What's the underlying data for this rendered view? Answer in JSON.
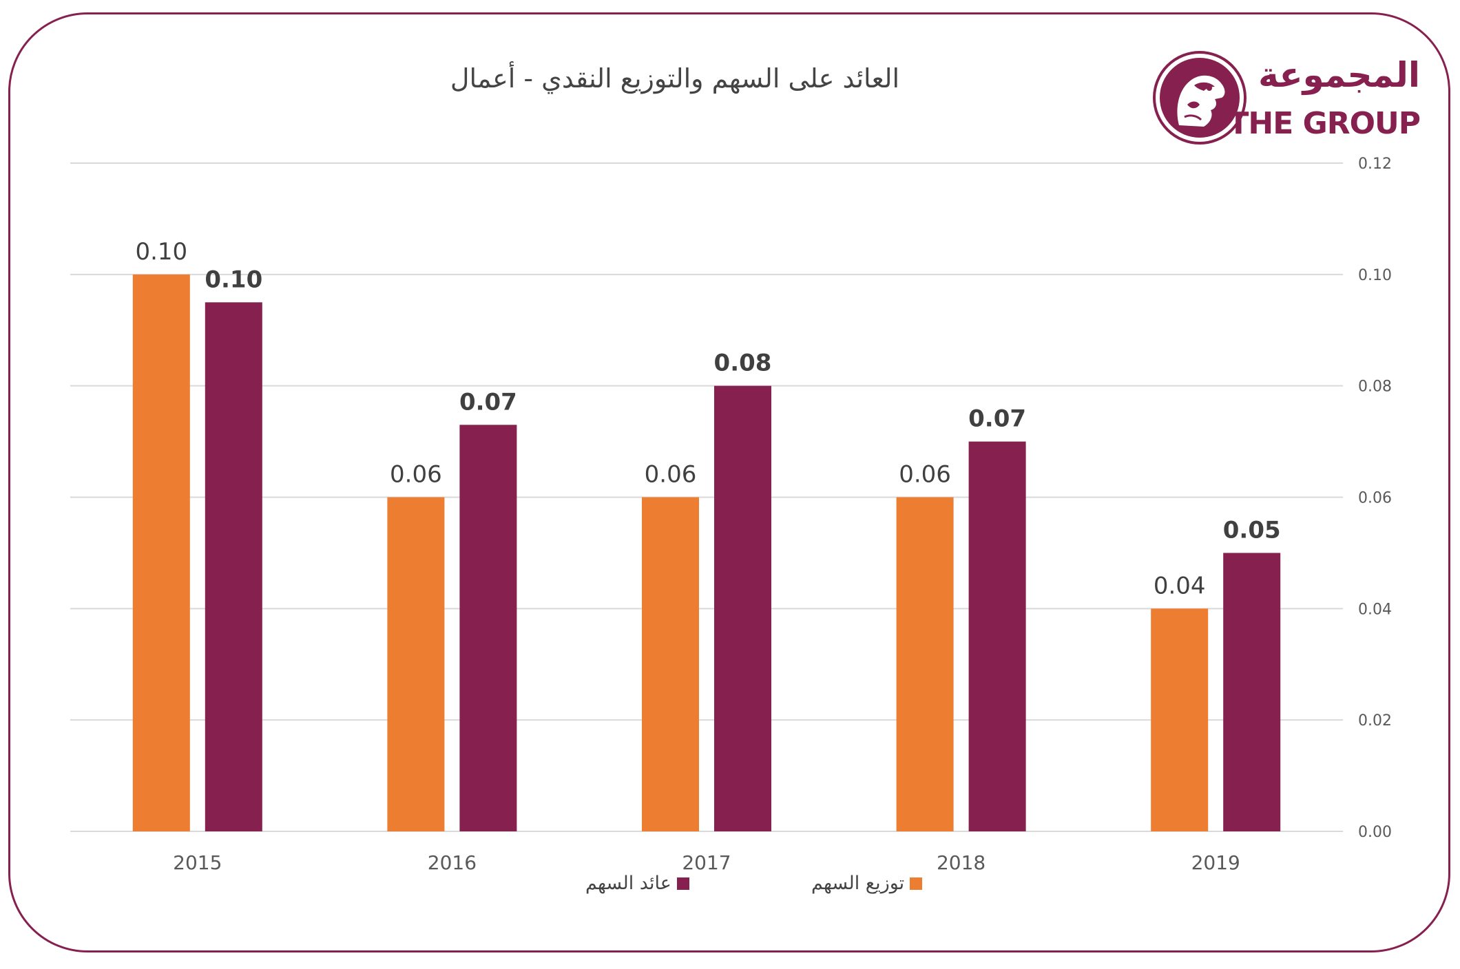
{
  "logo": {
    "ar": "المجموعة",
    "en": "THE GROUP"
  },
  "colors": {
    "frame": "#86204f",
    "orange": "#ed7d31",
    "purple": "#86204f",
    "grid": "#d9d9d9",
    "axis_text": "#595959"
  },
  "chart_data": {
    "type": "bar",
    "title": "العائد على السهم والتوزيع النقدي - أعمال",
    "categories": [
      "2015",
      "2016",
      "2017",
      "2018",
      "2019"
    ],
    "series": [
      {
        "name": "توزيع السهم",
        "color": "#ed7d31",
        "values": [
          0.1,
          0.06,
          0.06,
          0.06,
          0.04
        ],
        "labels": [
          "0.10",
          "0.06",
          "0.06",
          "0.06",
          "0.04"
        ],
        "bold_labels": false
      },
      {
        "name": "عائد السهم",
        "color": "#86204f",
        "values": [
          0.095,
          0.073,
          0.08,
          0.07,
          0.05
        ],
        "labels": [
          "0.10",
          "0.07",
          "0.08",
          "0.07",
          "0.05"
        ],
        "bold_labels": true
      }
    ],
    "y_axis": {
      "position": "right",
      "ylim": [
        0,
        0.12
      ],
      "ticks": [
        "0.00",
        "0.02",
        "0.04",
        "0.06",
        "0.08",
        "0.10",
        "0.12"
      ]
    },
    "grid": true,
    "legend_position": "bottom"
  }
}
